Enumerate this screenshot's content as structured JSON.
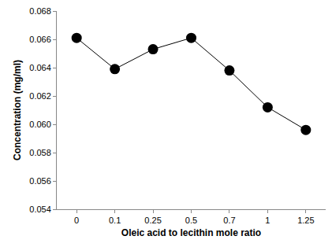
{
  "chart_data": {
    "type": "line",
    "x_label": "Oleic acid to lecithin mole ratio",
    "y_label": "Concentration (mg/ml)",
    "categories": [
      "0",
      "0.1",
      "0.25",
      "0.5",
      "0.7",
      "1",
      "1.25"
    ],
    "values": [
      0.0661,
      0.0639,
      0.0653,
      0.0661,
      0.0638,
      0.0612,
      0.0596
    ],
    "color": "#000000",
    "marker": "circle",
    "line_style": "solid",
    "ylim": [
      0.054,
      0.068
    ],
    "yticks": [
      0.054,
      0.056,
      0.058,
      {
        "value": 0.06,
        "label": "0.060"
      },
      0.062,
      0.064,
      0.066,
      0.068
    ],
    "grid": false
  }
}
